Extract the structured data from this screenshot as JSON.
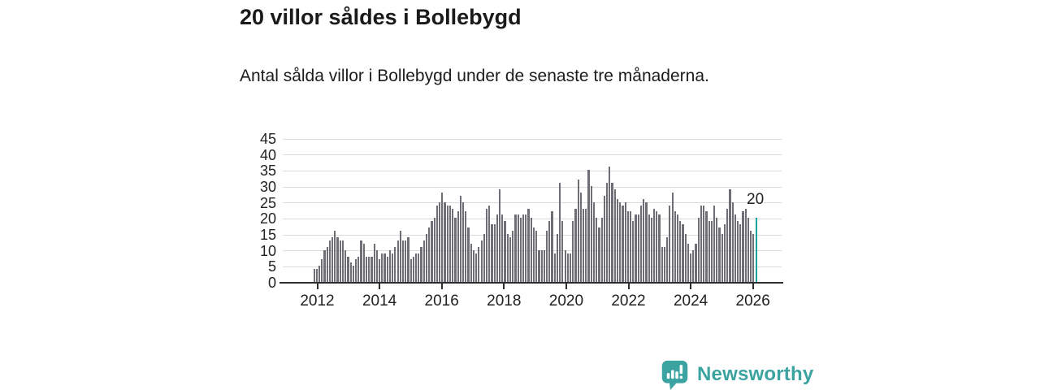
{
  "header": {
    "title": "20 villor såldes i Bollebygd",
    "subtitle": "Antal sålda villor i Bollebygd under de senaste tre månaderna."
  },
  "chart_data": {
    "type": "bar",
    "title": "20 villor såldes i Bollebygd",
    "subtitle": "Antal sålda villor i Bollebygd under de senaste tre månaderna.",
    "x_start": "2012-01",
    "x_end": "2026-02",
    "x_freq": "monthly",
    "values": [
      4,
      4,
      5,
      7,
      10,
      11,
      13,
      14,
      16,
      14,
      13,
      13,
      10,
      8,
      6,
      5,
      7,
      8,
      13,
      12,
      8,
      8,
      8,
      12,
      10,
      7,
      9,
      9,
      8,
      10,
      9,
      11,
      13,
      16,
      13,
      13,
      14,
      7,
      8,
      9,
      9,
      11,
      13,
      15,
      17,
      19,
      20,
      24,
      25,
      28,
      25,
      24,
      24,
      23,
      20,
      22,
      27,
      25,
      22,
      17,
      12,
      10,
      9,
      11,
      13,
      15,
      23,
      24,
      18,
      18,
      21,
      29,
      21,
      19,
      15,
      14,
      16,
      21,
      21,
      20,
      21,
      21,
      23,
      20,
      17,
      16,
      10,
      10,
      10,
      16,
      19,
      22,
      9,
      15,
      31,
      19,
      10,
      9,
      9,
      19,
      23,
      32,
      28,
      23,
      23,
      35,
      30,
      25,
      20,
      17,
      20,
      27,
      31,
      36,
      31,
      29,
      26,
      25,
      24,
      25,
      22,
      22,
      19,
      21,
      21,
      24,
      26,
      25,
      21,
      20,
      23,
      22,
      21,
      11,
      11,
      14,
      24,
      28,
      22,
      21,
      19,
      18,
      15,
      12,
      9,
      10,
      12,
      20,
      24,
      24,
      22,
      19,
      19,
      24,
      20,
      17,
      15,
      18,
      23,
      29,
      25,
      21,
      19,
      18,
      22,
      23,
      20,
      16,
      15,
      20
    ],
    "highlight_index": 169,
    "highlight_label": "20",
    "ylim": [
      0,
      45
    ],
    "yticks": [
      0,
      5,
      10,
      15,
      20,
      25,
      30,
      35,
      40,
      45
    ],
    "xticks": [
      "2012",
      "2014",
      "2016",
      "2018",
      "2020",
      "2022",
      "2024",
      "2026"
    ],
    "grid": true,
    "legend": false,
    "bar_color": "#6e6e76",
    "highlight_color": "#00a49e"
  },
  "annotation": {
    "label": "20"
  },
  "footer": {
    "brand": "Newsworthy",
    "brand_color": "#3ba3a0",
    "logo": "newsworthy-logo"
  }
}
